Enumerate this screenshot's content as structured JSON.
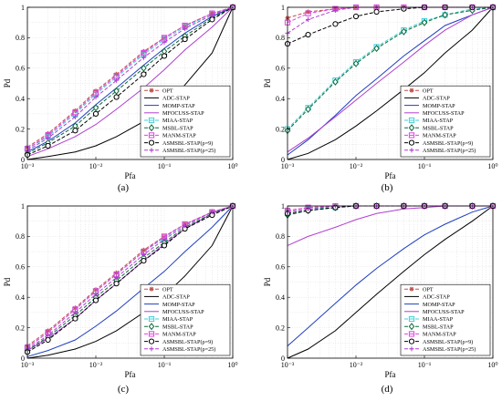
{
  "figure": {
    "panel_labels": [
      "(a)",
      "(b)",
      "(c)",
      "(d)"
    ]
  },
  "chart_data": [
    {
      "type": "line",
      "panel": "(a)",
      "xlabel": "Pfa",
      "ylabel": "Pd",
      "xscale": "log",
      "xlim": [
        0.001,
        1
      ],
      "ylim": [
        0,
        1
      ],
      "xticks": [
        "10⁻³",
        "10⁻²",
        "10⁻¹",
        "10⁰"
      ],
      "yticks": [
        "0",
        "0.2",
        "0.4",
        "0.6",
        "0.8",
        "1"
      ],
      "grid": true,
      "legend_position": "lower-right",
      "x": [
        0.001,
        0.002,
        0.005,
        0.01,
        0.02,
        0.05,
        0.1,
        0.2,
        0.5,
        1
      ],
      "series": [
        {
          "name": "OPT",
          "values": [
            0.08,
            0.17,
            0.32,
            0.45,
            0.56,
            0.71,
            0.8,
            0.88,
            0.96,
            1.0
          ]
        },
        {
          "name": "ADC-STAP",
          "values": [
            0.0,
            0.02,
            0.05,
            0.09,
            0.15,
            0.25,
            0.36,
            0.49,
            0.7,
            1.0
          ]
        },
        {
          "name": "MOMP-STAP",
          "values": [
            0.05,
            0.12,
            0.24,
            0.36,
            0.47,
            0.62,
            0.73,
            0.83,
            0.94,
            1.0
          ]
        },
        {
          "name": "MFOCUSS-STAP",
          "values": [
            0.02,
            0.07,
            0.15,
            0.23,
            0.33,
            0.47,
            0.59,
            0.72,
            0.87,
            1.0
          ]
        },
        {
          "name": "MIAA-STAP",
          "values": [
            0.07,
            0.15,
            0.3,
            0.43,
            0.54,
            0.69,
            0.79,
            0.87,
            0.96,
            1.0
          ]
        },
        {
          "name": "MSBL-STAP",
          "values": [
            0.04,
            0.11,
            0.22,
            0.34,
            0.45,
            0.6,
            0.71,
            0.81,
            0.93,
            1.0
          ]
        },
        {
          "name": "MANM-STAP",
          "values": [
            0.07,
            0.16,
            0.31,
            0.44,
            0.55,
            0.7,
            0.8,
            0.88,
            0.96,
            1.0
          ]
        },
        {
          "name": "ASMSBL-STAP(ρ=9)",
          "values": [
            0.03,
            0.09,
            0.19,
            0.3,
            0.41,
            0.56,
            0.68,
            0.79,
            0.92,
            1.0
          ]
        },
        {
          "name": "ASMSBL-STAP(ρ=25)",
          "values": [
            0.06,
            0.14,
            0.28,
            0.41,
            0.52,
            0.67,
            0.77,
            0.86,
            0.95,
            1.0
          ]
        }
      ]
    },
    {
      "type": "line",
      "panel": "(b)",
      "xlabel": "Pfa",
      "ylabel": "Pd",
      "xscale": "log",
      "xlim": [
        0.001,
        1
      ],
      "ylim": [
        0,
        1
      ],
      "xticks": [
        "10⁻³",
        "10⁻²",
        "10⁻¹",
        "10⁰"
      ],
      "yticks": [
        "0",
        "0.2",
        "0.4",
        "0.6",
        "0.8",
        "1"
      ],
      "grid": true,
      "legend_position": "lower-right",
      "x": [
        0.001,
        0.002,
        0.005,
        0.01,
        0.02,
        0.05,
        0.1,
        0.2,
        0.5,
        1
      ],
      "series": [
        {
          "name": "OPT",
          "values": [
            0.93,
            0.97,
            0.99,
            1.0,
            1.0,
            1.0,
            1.0,
            1.0,
            1.0,
            1.0
          ]
        },
        {
          "name": "ADC-STAP",
          "values": [
            0.0,
            0.04,
            0.13,
            0.22,
            0.32,
            0.46,
            0.57,
            0.7,
            0.85,
            1.0
          ]
        },
        {
          "name": "MOMP-STAP",
          "values": [
            0.03,
            0.13,
            0.29,
            0.42,
            0.53,
            0.68,
            0.78,
            0.88,
            0.95,
            1.0
          ]
        },
        {
          "name": "MFOCUSS-STAP",
          "values": [
            0.05,
            0.14,
            0.28,
            0.39,
            0.5,
            0.64,
            0.75,
            0.85,
            0.95,
            1.0
          ]
        },
        {
          "name": "MIAA-STAP",
          "values": [
            0.2,
            0.34,
            0.52,
            0.64,
            0.74,
            0.85,
            0.91,
            0.95,
            0.99,
            1.0
          ]
        },
        {
          "name": "MSBL-STAP",
          "values": [
            0.19,
            0.33,
            0.51,
            0.63,
            0.73,
            0.84,
            0.9,
            0.95,
            0.98,
            1.0
          ]
        },
        {
          "name": "MANM-STAP",
          "values": [
            0.9,
            0.96,
            0.99,
            1.0,
            1.0,
            1.0,
            1.0,
            1.0,
            1.0,
            1.0
          ]
        },
        {
          "name": "ASMSBL-STAP(ρ=9)",
          "values": [
            0.76,
            0.82,
            0.89,
            0.94,
            0.97,
            0.99,
            1.0,
            1.0,
            1.0,
            1.0
          ]
        },
        {
          "name": "ASMSBL-STAP(ρ=25)",
          "values": [
            0.83,
            0.92,
            0.98,
            1.0,
            1.0,
            1.0,
            1.0,
            1.0,
            1.0,
            1.0
          ]
        }
      ]
    },
    {
      "type": "line",
      "panel": "(c)",
      "xlabel": "Pfa",
      "ylabel": "Pd",
      "xscale": "log",
      "xlim": [
        0.001,
        1
      ],
      "ylim": [
        0,
        1
      ],
      "xticks": [
        "10⁻³",
        "10⁻²",
        "10⁻¹",
        "10⁰"
      ],
      "yticks": [
        "0",
        "0.2",
        "0.4",
        "0.6",
        "0.8",
        "1"
      ],
      "grid": true,
      "legend_position": "lower-right",
      "x": [
        0.001,
        0.002,
        0.005,
        0.01,
        0.02,
        0.05,
        0.1,
        0.2,
        0.5,
        1
      ],
      "series": [
        {
          "name": "OPT",
          "values": [
            0.08,
            0.18,
            0.33,
            0.45,
            0.56,
            0.71,
            0.8,
            0.88,
            0.96,
            1.0
          ]
        },
        {
          "name": "ADC-STAP",
          "values": [
            0.0,
            0.02,
            0.06,
            0.11,
            0.18,
            0.3,
            0.41,
            0.54,
            0.74,
            1.0
          ]
        },
        {
          "name": "MOMP-STAP",
          "values": [
            0.01,
            0.05,
            0.12,
            0.21,
            0.31,
            0.46,
            0.57,
            0.7,
            0.86,
            1.0
          ]
        },
        {
          "name": "MFOCUSS-STAP",
          "values": [
            0.05,
            0.13,
            0.26,
            0.38,
            0.49,
            0.64,
            0.75,
            0.85,
            0.95,
            1.0
          ]
        },
        {
          "name": "MIAA-STAP",
          "values": [
            0.07,
            0.17,
            0.32,
            0.44,
            0.55,
            0.7,
            0.79,
            0.88,
            0.96,
            1.0
          ]
        },
        {
          "name": "MSBL-STAP",
          "values": [
            0.05,
            0.14,
            0.28,
            0.4,
            0.51,
            0.66,
            0.76,
            0.86,
            0.95,
            1.0
          ]
        },
        {
          "name": "MANM-STAP",
          "values": [
            0.07,
            0.17,
            0.32,
            0.44,
            0.55,
            0.7,
            0.8,
            0.88,
            0.96,
            1.0
          ]
        },
        {
          "name": "ASMSBL-STAP(ρ=9)",
          "values": [
            0.04,
            0.12,
            0.26,
            0.38,
            0.49,
            0.64,
            0.74,
            0.85,
            0.94,
            1.0
          ]
        },
        {
          "name": "ASMSBL-STAP(ρ=25)",
          "values": [
            0.06,
            0.15,
            0.3,
            0.42,
            0.53,
            0.68,
            0.78,
            0.87,
            0.96,
            1.0
          ]
        }
      ]
    },
    {
      "type": "line",
      "panel": "(d)",
      "xlabel": "Pfa",
      "ylabel": "Pd",
      "xscale": "log",
      "xlim": [
        0.001,
        1
      ],
      "ylim": [
        0,
        1
      ],
      "xticks": [
        "10⁻³",
        "10⁻²",
        "10⁻¹",
        "10⁰"
      ],
      "yticks": [
        "0",
        "0.2",
        "0.4",
        "0.6",
        "0.8",
        "1"
      ],
      "grid": true,
      "legend_position": "lower-right",
      "x": [
        0.001,
        0.002,
        0.005,
        0.01,
        0.02,
        0.05,
        0.1,
        0.2,
        0.5,
        1
      ],
      "series": [
        {
          "name": "OPT",
          "values": [
            0.97,
            0.99,
            1.0,
            1.0,
            1.0,
            1.0,
            1.0,
            1.0,
            1.0,
            1.0
          ]
        },
        {
          "name": "ADC-STAP",
          "values": [
            0.0,
            0.06,
            0.18,
            0.3,
            0.42,
            0.57,
            0.68,
            0.78,
            0.9,
            1.0
          ]
        },
        {
          "name": "MOMP-STAP",
          "values": [
            0.08,
            0.2,
            0.36,
            0.48,
            0.59,
            0.72,
            0.81,
            0.88,
            0.96,
            1.0
          ]
        },
        {
          "name": "MFOCUSS-STAP",
          "values": [
            0.74,
            0.8,
            0.86,
            0.91,
            0.95,
            0.98,
            0.99,
            1.0,
            1.0,
            1.0
          ]
        },
        {
          "name": "MIAA-STAP",
          "values": [
            0.96,
            0.98,
            0.99,
            1.0,
            1.0,
            1.0,
            1.0,
            1.0,
            1.0,
            1.0
          ]
        },
        {
          "name": "MSBL-STAP",
          "values": [
            0.94,
            0.97,
            0.99,
            1.0,
            1.0,
            1.0,
            1.0,
            1.0,
            1.0,
            1.0
          ]
        },
        {
          "name": "MANM-STAP",
          "values": [
            0.97,
            0.99,
            1.0,
            1.0,
            1.0,
            1.0,
            1.0,
            1.0,
            1.0,
            1.0
          ]
        },
        {
          "name": "ASMSBL-STAP(ρ=9)",
          "values": [
            0.95,
            0.97,
            0.99,
            1.0,
            1.0,
            1.0,
            1.0,
            1.0,
            1.0,
            1.0
          ]
        },
        {
          "name": "ASMSBL-STAP(ρ=25)",
          "values": [
            0.96,
            0.98,
            1.0,
            1.0,
            1.0,
            1.0,
            1.0,
            1.0,
            1.0,
            1.0
          ]
        }
      ]
    }
  ],
  "series_style": [
    {
      "color": "#c0504d",
      "dash": "4,2",
      "marker": "star"
    },
    {
      "color": "#000000",
      "dash": "",
      "marker": "none"
    },
    {
      "color": "#1f3fbf",
      "dash": "",
      "marker": "none"
    },
    {
      "color": "#b03fd0",
      "dash": "",
      "marker": "none"
    },
    {
      "color": "#3fd0d8",
      "dash": "4,2",
      "marker": "square"
    },
    {
      "color": "#0a6b3a",
      "dash": "4,2",
      "marker": "diamond"
    },
    {
      "color": "#e040e0",
      "dash": "4,2",
      "marker": "square"
    },
    {
      "color": "#000000",
      "dash": "4,2",
      "marker": "circle"
    },
    {
      "color": "#b040d0",
      "dash": "4,2",
      "marker": "plus"
    }
  ]
}
